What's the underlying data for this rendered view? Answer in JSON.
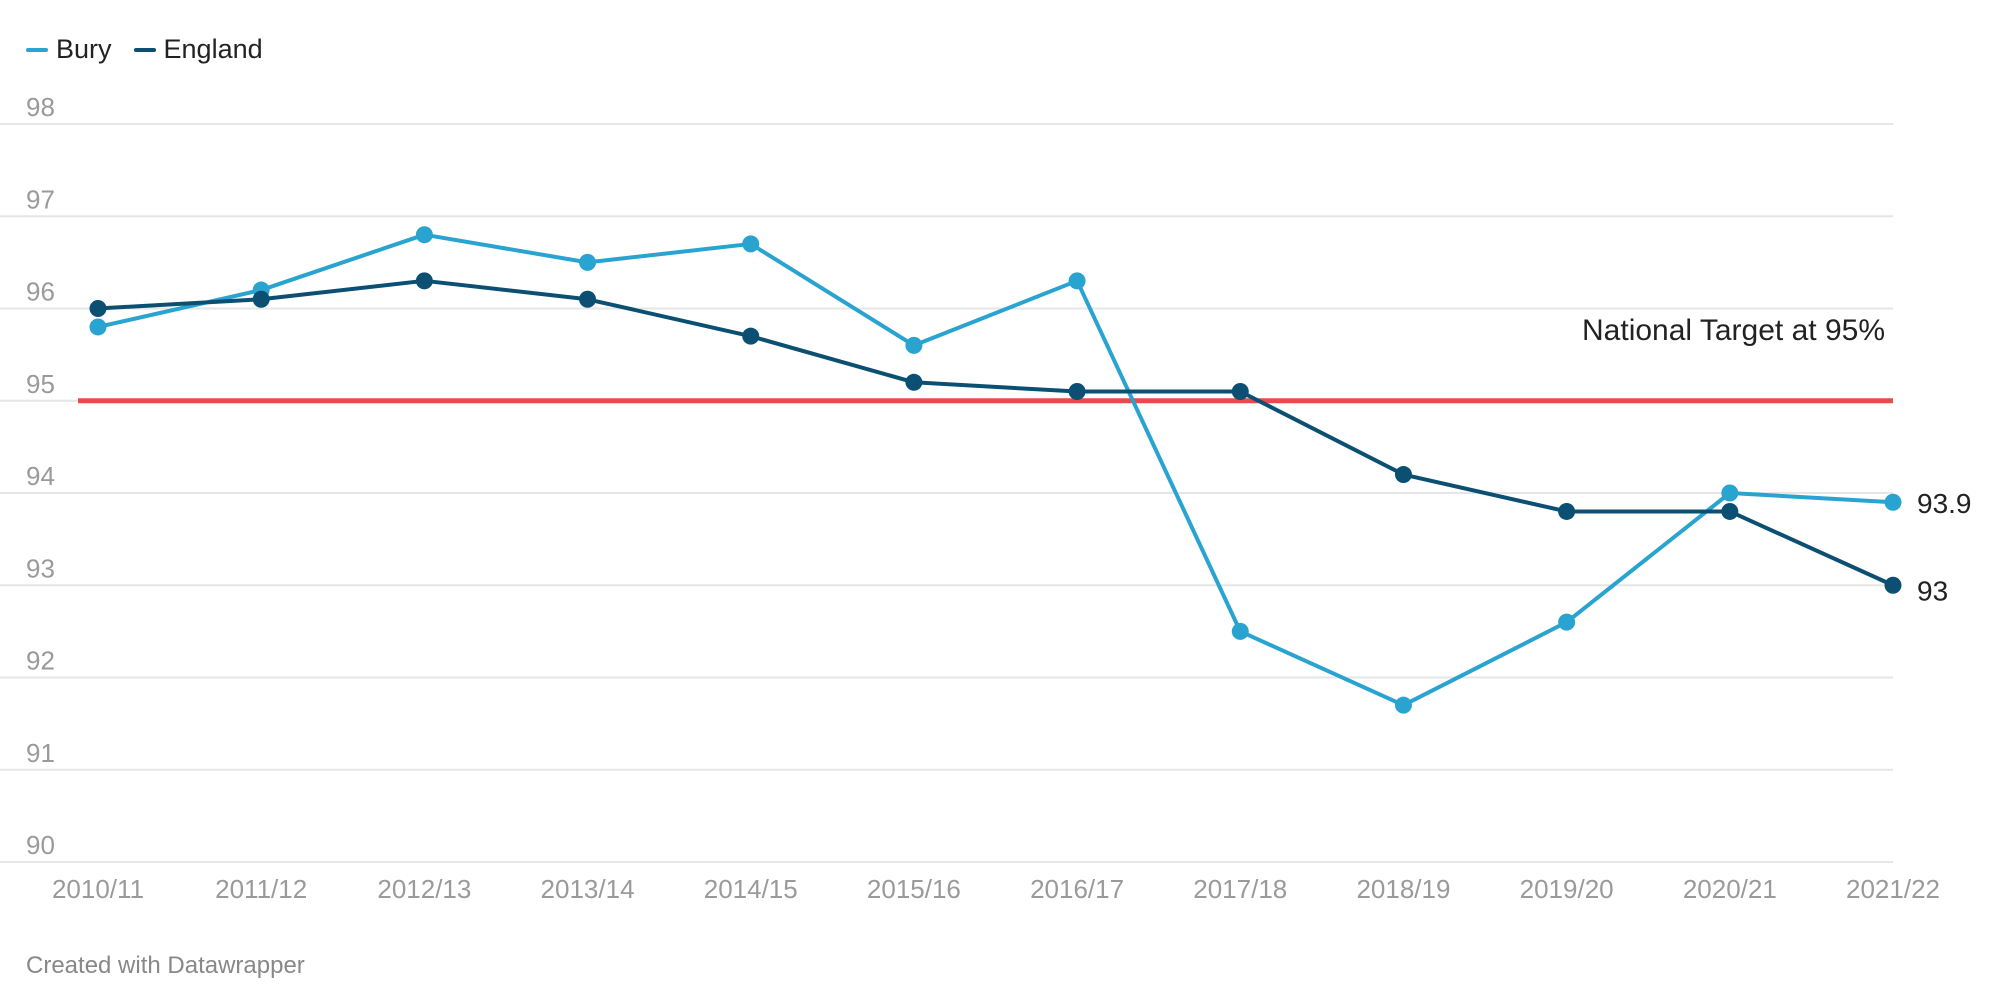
{
  "legend": [
    {
      "name": "Bury",
      "color": "#29a3d0"
    },
    {
      "name": "England",
      "color": "#0b4f72"
    }
  ],
  "footer": "Created with Datawrapper",
  "colors": {
    "bury": "#29a3d0",
    "england": "#0b4f72",
    "target_line": "#e84b4b",
    "gridline": "#e6e6e6",
    "tick_text": "#9a9a9a",
    "label_text": "#222222"
  },
  "chart_data": {
    "type": "line",
    "title": "",
    "xlabel": "",
    "ylabel": "",
    "categories": [
      "2010/11",
      "2011/12",
      "2012/13",
      "2013/14",
      "2014/15",
      "2015/16",
      "2016/17",
      "2017/18",
      "2018/19",
      "2019/20",
      "2020/21",
      "2021/22"
    ],
    "ylim": [
      90,
      98
    ],
    "yticks": [
      90,
      91,
      92,
      93,
      94,
      95,
      96,
      97,
      98
    ],
    "grid": true,
    "legend_position": "top-left",
    "series": [
      {
        "name": "Bury",
        "values": [
          95.8,
          96.2,
          96.8,
          96.5,
          96.7,
          95.6,
          96.3,
          92.5,
          91.7,
          92.6,
          94.0,
          93.9
        ],
        "end_label": "93.9"
      },
      {
        "name": "England",
        "values": [
          96.0,
          96.1,
          96.3,
          96.1,
          95.7,
          95.2,
          95.1,
          95.1,
          94.2,
          93.8,
          93.8,
          93.0
        ],
        "end_label": "93"
      }
    ],
    "reference_line": {
      "value": 95,
      "label": "National Target at 95%"
    }
  }
}
